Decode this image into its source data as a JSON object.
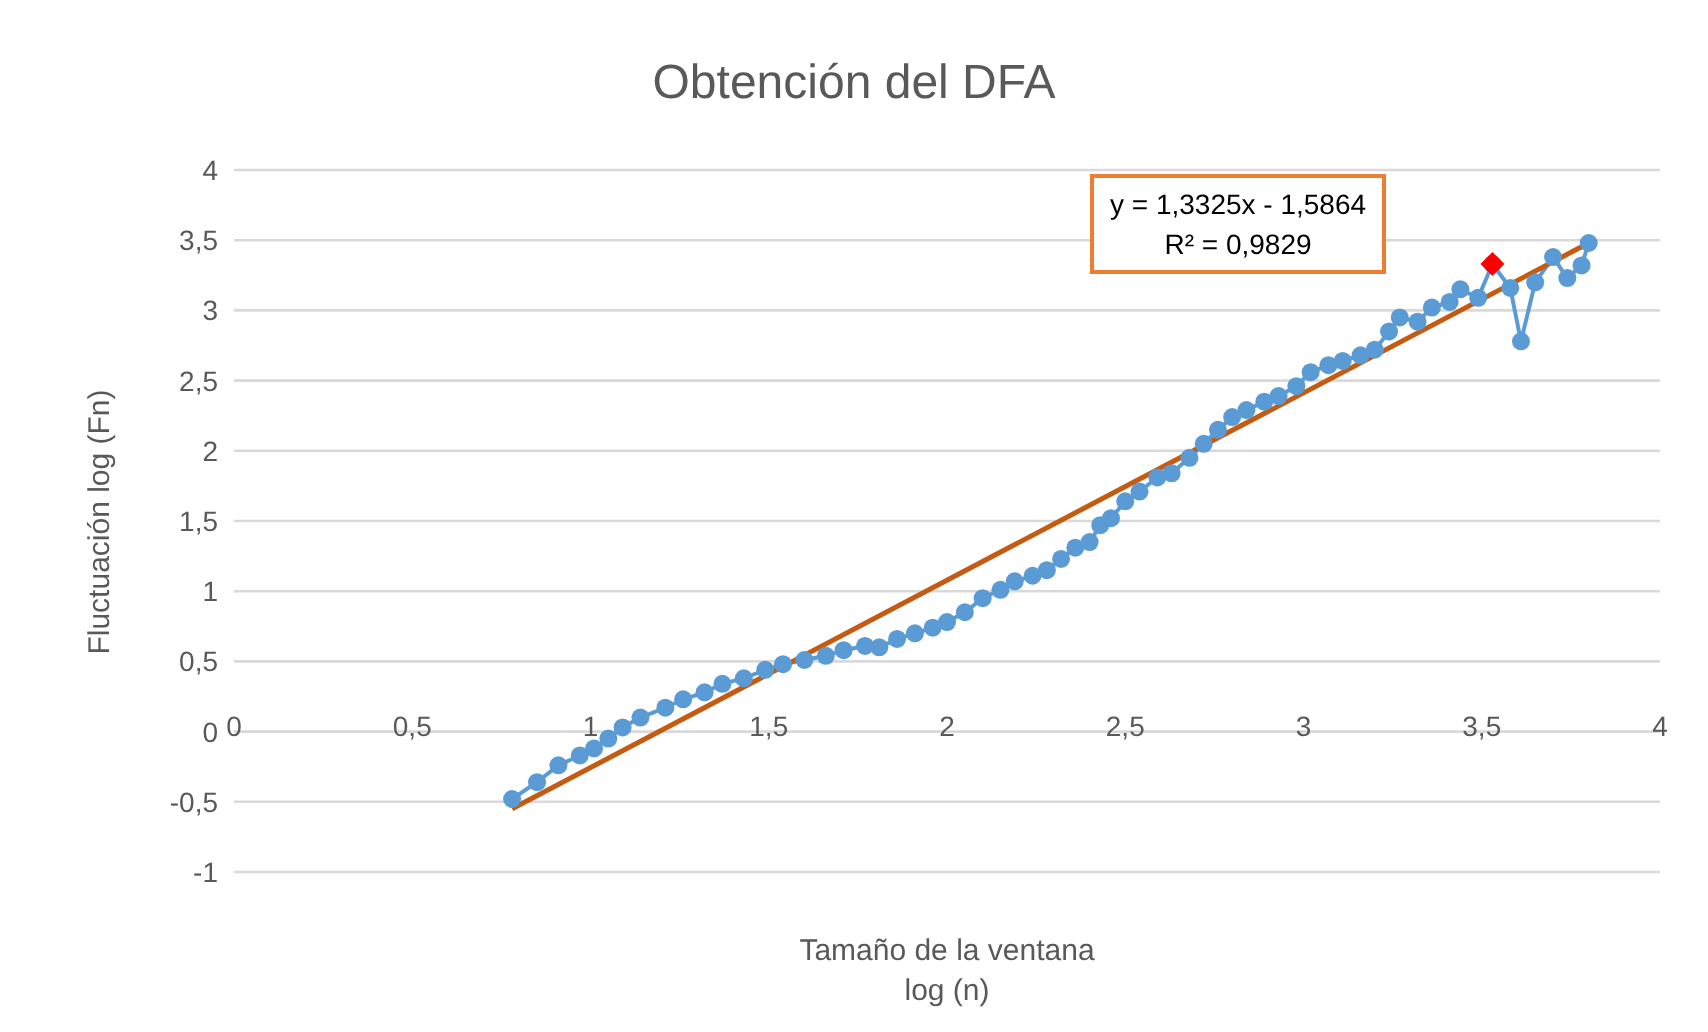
{
  "chart_data": {
    "type": "line",
    "title": "Obtención del DFA",
    "xlabel": "Tamaño de  la ventana\nlog (n)",
    "ylabel": "Fluctuación log (Fn)",
    "annotations": [
      "y = 1,3325x - 1,5864\nR² = 0,9829"
    ],
    "xlim": [
      0,
      4
    ],
    "xticks": [
      0,
      {
        "value": 0.5,
        "label": "0,5"
      },
      1,
      {
        "value": 1.5,
        "label": "1,5"
      },
      2,
      {
        "value": 2.5,
        "label": "2,5"
      },
      3,
      {
        "value": 3.5,
        "label": "3,5"
      },
      4
    ],
    "ylim": [
      -1,
      4
    ],
    "yticks": [
      -1,
      {
        "value": -0.5,
        "label": "-0,5"
      },
      0,
      {
        "value": 0.5,
        "label": "0,5"
      },
      1,
      {
        "value": 1.5,
        "label": "1,5"
      },
      2,
      {
        "value": 2.5,
        "label": "2,5"
      },
      3,
      {
        "value": 3.5,
        "label": "3,5"
      },
      4
    ],
    "grid": "y",
    "legend": false,
    "series": [
      {
        "color": "#5b9bd5",
        "marker": "circle",
        "x": [
          0.78,
          0.85,
          0.91,
          0.97,
          1.01,
          1.05,
          1.09,
          1.14,
          1.21,
          1.26,
          1.32,
          1.37,
          1.43,
          1.49,
          1.54,
          1.6,
          1.66,
          1.71,
          1.77,
          1.81,
          1.86,
          1.91,
          1.96,
          2.0,
          2.05,
          2.1,
          2.15,
          2.19,
          2.24,
          2.28,
          2.32,
          2.36,
          2.4,
          2.43,
          2.46,
          2.5,
          2.54,
          2.59,
          2.63,
          2.68,
          2.72,
          2.76,
          2.8,
          2.84,
          2.89,
          2.93,
          2.98,
          3.02,
          3.07,
          3.11,
          3.16,
          3.2,
          3.24,
          3.27,
          3.32,
          3.36,
          3.41,
          3.44,
          3.49,
          3.53,
          3.58,
          3.61,
          3.65,
          3.7,
          3.74,
          3.78,
          3.8
        ],
        "values": [
          -0.48,
          -0.36,
          -0.24,
          -0.17,
          -0.12,
          -0.05,
          0.03,
          0.1,
          0.17,
          0.23,
          0.28,
          0.34,
          0.38,
          0.44,
          0.48,
          0.51,
          0.54,
          0.58,
          0.61,
          0.6,
          0.66,
          0.7,
          0.74,
          0.78,
          0.85,
          0.95,
          1.01,
          1.07,
          1.11,
          1.15,
          1.23,
          1.31,
          1.35,
          1.47,
          1.52,
          1.64,
          1.71,
          1.81,
          1.84,
          1.95,
          2.05,
          2.15,
          2.24,
          2.29,
          2.35,
          2.39,
          2.46,
          2.56,
          2.61,
          2.64,
          2.68,
          2.72,
          2.85,
          2.95,
          2.92,
          3.02,
          3.06,
          3.15,
          3.09,
          3.33,
          3.16,
          2.78,
          3.2,
          3.38,
          3.23,
          3.32,
          3.48
        ]
      },
      {
        "type": "scatter",
        "color": "#ff0000",
        "marker": "diamond",
        "x": [
          3.53
        ],
        "values": [
          3.33
        ]
      },
      {
        "color": "#c55a11",
        "marker": "none",
        "x": [
          0.78,
          3.8
        ],
        "values": [
          -0.55,
          3.48
        ]
      }
    ]
  }
}
